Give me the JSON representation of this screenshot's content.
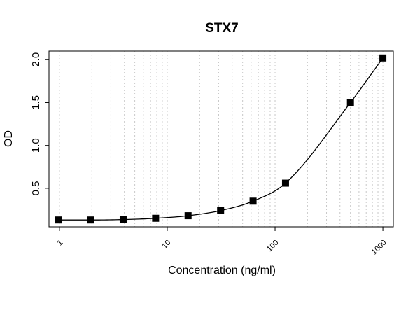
{
  "chart_data": {
    "type": "scatter",
    "title": "STX7",
    "xlabel": "Concentration (ng/ml)",
    "ylabel": "OD",
    "x_scale": "log",
    "xlim": [
      0.8,
      1250
    ],
    "ylim": [
      0.05,
      2.1
    ],
    "x_ticks": [
      1,
      10,
      100,
      1000
    ],
    "x_tick_labels": [
      "1",
      "10",
      "100",
      "1000"
    ],
    "y_ticks": [
      0.5,
      1.0,
      1.5,
      2.0
    ],
    "y_tick_labels": [
      "0.5",
      "1.0",
      "1.5",
      "2.0"
    ],
    "grid": "vertical dotted lines at log minor ticks",
    "legend": "none",
    "marker": "filled square",
    "marker_color": "#000000",
    "line_color": "#000000",
    "series": [
      {
        "x": [
          0.98,
          1.95,
          3.9,
          7.8,
          15.6,
          31.25,
          62.5,
          125,
          500,
          1000
        ],
        "y": [
          0.13,
          0.13,
          0.135,
          0.15,
          0.18,
          0.24,
          0.35,
          0.56,
          1.5,
          2.02
        ]
      }
    ]
  }
}
